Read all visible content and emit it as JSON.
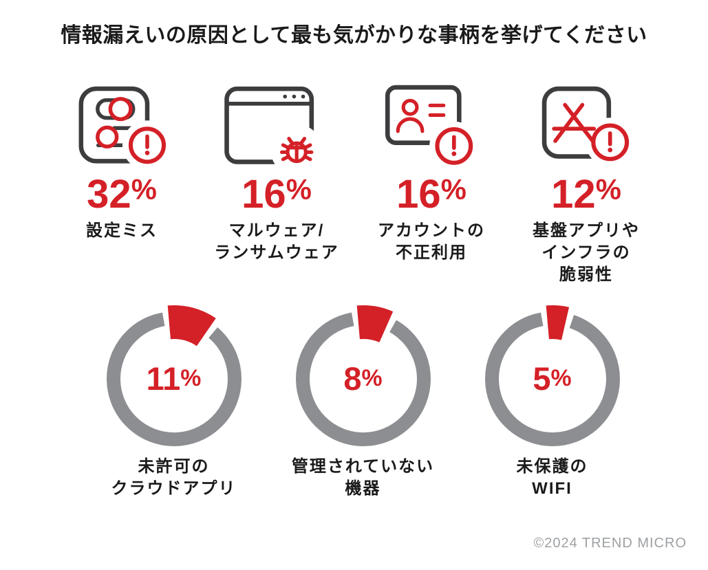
{
  "title": "情報漏えいの原因として最も気がかりな事柄を挙げてください",
  "colors": {
    "accent_red": "#d42027",
    "icon_dark": "#3d3d3f",
    "text_black": "#1a1a1a",
    "ring_gray": "#8c8e91",
    "footer_gray": "#9da0a3"
  },
  "stats": [
    {
      "icon": "settings-alert-icon",
      "value": 32,
      "display": "32",
      "unit": "%",
      "label_lines": [
        "設定ミス"
      ]
    },
    {
      "icon": "browser-bug-icon",
      "value": 16,
      "display": "16",
      "unit": "%",
      "label_lines": [
        "マルウェア/",
        "ランサムウェア"
      ]
    },
    {
      "icon": "id-card-alert-icon",
      "value": 16,
      "display": "16",
      "unit": "%",
      "label_lines": [
        "アカウントの",
        "不正利用"
      ]
    },
    {
      "icon": "app-infra-alert-icon",
      "value": 12,
      "display": "12",
      "unit": "%",
      "label_lines": [
        "基盤アプリや",
        "インフラの",
        "脆弱性"
      ]
    }
  ],
  "donuts": [
    {
      "value": 11,
      "display": "11",
      "unit": "%",
      "label_lines": [
        "未許可の",
        "クラウドアプリ"
      ]
    },
    {
      "value": 8,
      "display": "8",
      "unit": "%",
      "label_lines": [
        "管理されていない",
        "機器"
      ]
    },
    {
      "value": 5,
      "display": "5",
      "unit": "%",
      "label_lines": [
        "未保護の",
        "WIFI"
      ]
    }
  ],
  "footer": {
    "copyright": "©2024 TREND MICRO"
  },
  "chart_data": {
    "type": "pie",
    "title": "情報漏えいの原因として最も気がかりな事柄を挙げてください",
    "unit": "%",
    "categories": [
      "設定ミス",
      "マルウェア/ランサムウェア",
      "アカウントの不正利用",
      "基盤アプリやインフラの脆弱性",
      "未許可のクラウドアプリ",
      "管理されていない機器",
      "未保護のWIFI"
    ],
    "values": [
      32,
      16,
      16,
      12,
      11,
      8,
      5
    ],
    "legend_position": "none",
    "layout": "top four values shown as red icon callouts with bold percentages; bottom three shown as gray donut rings with a red slice starting at 12 o'clock, percentage centered inside",
    "slice_color": "#d42027",
    "ring_color": "#8c8e91"
  }
}
